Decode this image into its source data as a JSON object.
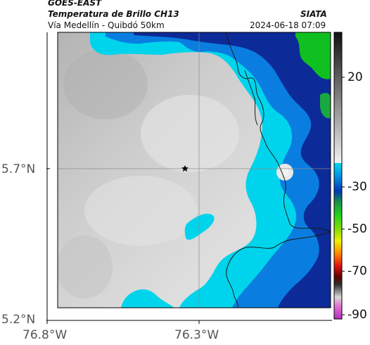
{
  "header": {
    "satellite": "GOES-EAST",
    "product": "Temperatura de Brillo CH13",
    "region": "Vía Medellín - Quibdó 50km",
    "agency": "SIATA",
    "datetime": "2024-06-18 07:09"
  },
  "map": {
    "lat_ticks": [
      "5.7°N",
      "5.2°N"
    ],
    "lon_ticks": [
      "76.8°W",
      "76.3°W"
    ],
    "marker_icon": "star-icon"
  },
  "colorbar": {
    "labels": [
      "20",
      "-30",
      "-50",
      "-70",
      "-90"
    ]
  },
  "colors": {
    "cloud_gray": "#d0d0d0",
    "cyan": "#00d0ee",
    "blue": "#0050c8",
    "navy": "#0a1870",
    "green": "#10c020"
  }
}
